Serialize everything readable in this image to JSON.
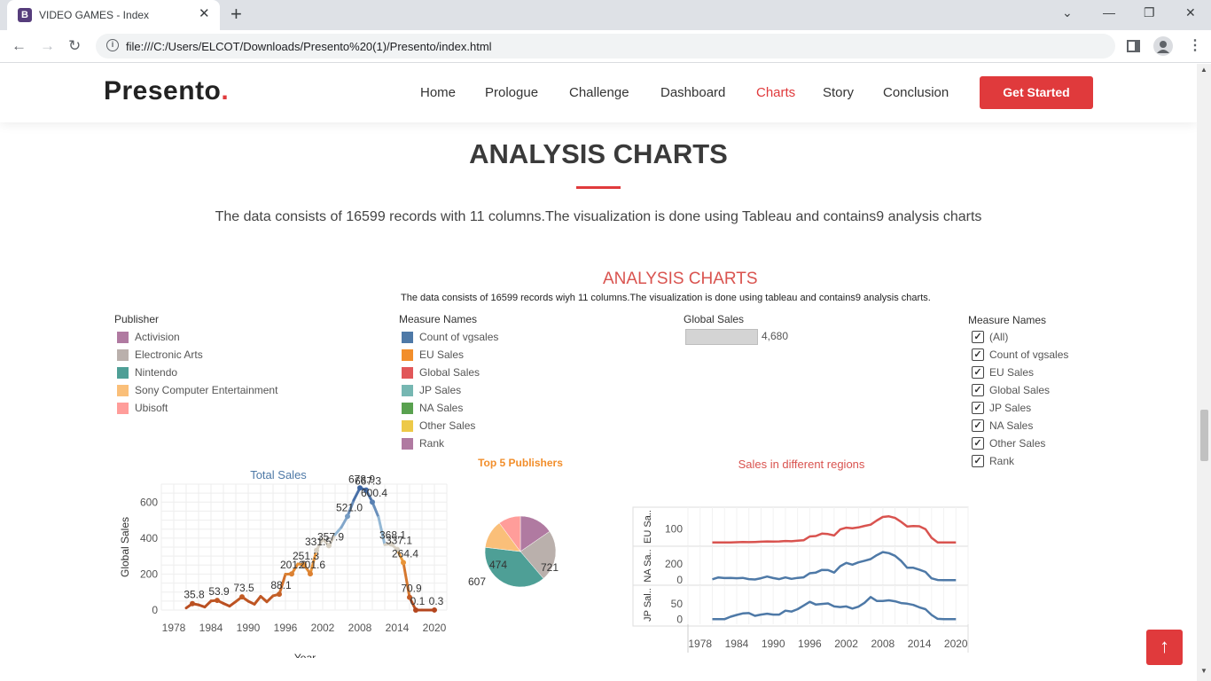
{
  "browser": {
    "tab_title": "VIDEO GAMES - Index",
    "tab_favicon": "B",
    "url": "file:///C:/Users/ELCOT/Downloads/Presento%20(1)/Presento/index.html"
  },
  "site": {
    "logo": "Presento",
    "logo_dot": ".",
    "nav": [
      "Home",
      "Prologue",
      "Challenge",
      "Dashboard",
      "Charts",
      "Story",
      "Conclusion"
    ],
    "active_nav": "Charts",
    "cta": "Get Started"
  },
  "section": {
    "title": "ANALYSIS CHARTS",
    "description": "The data consists of 16599 records with 11 columns.The visualization is done using Tableau and contains9 analysis charts"
  },
  "dashboard": {
    "title": "ANALYSIS CHARTS",
    "subtitle": "The data consists of 16599 records wiyh 11 columns.The visualization is done using tableau and contains9 analysis charts.",
    "publisher_legend": {
      "title": "Publisher",
      "items": [
        {
          "label": "Activision",
          "color": "#b07aa1"
        },
        {
          "label": "Electronic Arts",
          "color": "#bab0ac"
        },
        {
          "label": "Nintendo",
          "color": "#4e9f96"
        },
        {
          "label": "Sony Computer Entertainment",
          "color": "#fabf79"
        },
        {
          "label": "Ubisoft",
          "color": "#ff9d9a"
        }
      ]
    },
    "measure_legend": {
      "title": "Measure Names",
      "items": [
        {
          "label": "Count of vgsales",
          "color": "#4e79a7"
        },
        {
          "label": "EU Sales",
          "color": "#f28e2b"
        },
        {
          "label": "Global Sales",
          "color": "#e15759"
        },
        {
          "label": "JP Sales",
          "color": "#76b7b2"
        },
        {
          "label": "NA Sales",
          "color": "#59a14f"
        },
        {
          "label": "Other Sales",
          "color": "#edc948"
        },
        {
          "label": "Rank",
          "color": "#b07aa1"
        }
      ]
    },
    "global_sales_filter": {
      "title": "Global Sales",
      "value": "4,680"
    },
    "measure_filter": {
      "title": "Measure Names",
      "items": [
        "(All)",
        "Count of vgsales",
        "EU Sales",
        "Global Sales",
        "JP Sales",
        "NA Sales",
        "Other Sales",
        "Rank"
      ]
    }
  },
  "chart_data": [
    {
      "type": "line",
      "title": "Total Sales",
      "xlabel": "Year",
      "ylabel": "Global Sales",
      "x_ticks": [
        "1978",
        "1984",
        "1990",
        "1996",
        "2002",
        "2008",
        "2014",
        "2020"
      ],
      "y_ticks": [
        "0",
        "200",
        "400",
        "600"
      ],
      "x": [
        1980,
        1981,
        1982,
        1983,
        1984,
        1985,
        1986,
        1987,
        1988,
        1989,
        1990,
        1991,
        1992,
        1993,
        1994,
        1995,
        1996,
        1997,
        1998,
        1999,
        2000,
        2001,
        2002,
        2003,
        2004,
        2005,
        2006,
        2007,
        2008,
        2009,
        2010,
        2011,
        2012,
        2013,
        2014,
        2015,
        2016,
        2017,
        2018,
        2019,
        2020
      ],
      "values": [
        11.4,
        35.8,
        28.9,
        16.8,
        50.4,
        53.9,
        37.1,
        21.7,
        47.2,
        73.5,
        49.4,
        32.2,
        76.2,
        45.9,
        79.2,
        88.1,
        199.2,
        201.0,
        256.5,
        251.3,
        201.6,
        331.5,
        395.5,
        357.9,
        419.3,
        459.9,
        521.0,
        611.1,
        678.9,
        667.3,
        600.4,
        515.9,
        363.5,
        368.1,
        337.1,
        264.4,
        70.9,
        0.1,
        0.1,
        0.1,
        0.3
      ],
      "point_labels": [
        {
          "year": 1981,
          "label": "35.8"
        },
        {
          "year": 1985,
          "label": "53.9"
        },
        {
          "year": 1989,
          "label": "73.5"
        },
        {
          "year": 1995,
          "label": "88.1"
        },
        {
          "year": 1997,
          "label": "201.0"
        },
        {
          "year": 1999,
          "label": "251.3"
        },
        {
          "year": 2000,
          "label": "201.6"
        },
        {
          "year": 2001,
          "label": "331.5"
        },
        {
          "year": 2003,
          "label": "357.9"
        },
        {
          "year": 2006,
          "label": "521.0"
        },
        {
          "year": 2008,
          "label": "678.9"
        },
        {
          "year": 2009,
          "label": "667.3"
        },
        {
          "year": 2010,
          "label": "600.4"
        },
        {
          "year": 2013,
          "label": "368.1"
        },
        {
          "year": 2014,
          "label": "337.1"
        },
        {
          "year": 2015,
          "label": "264.4"
        },
        {
          "year": 2016,
          "label": "70.9"
        },
        {
          "year": 2017,
          "label": "0.1"
        },
        {
          "year": 2020,
          "label": "0.3"
        }
      ],
      "ylim": [
        0,
        700
      ],
      "xlim": [
        1976,
        2022
      ],
      "grid": true
    },
    {
      "type": "pie",
      "title": "Top 5 Publishers",
      "slices": [
        {
          "label": "721",
          "value": 721,
          "color": "#b07aa1"
        },
        {
          "label": "1,093",
          "value": 1093,
          "color": "#bab0ac"
        },
        {
          "label": "1,784",
          "value": 1784,
          "color": "#4e9f96"
        },
        {
          "label": "607",
          "value": 607,
          "color": "#fabf79"
        },
        {
          "label": "474",
          "value": 474,
          "color": "#ff9d9a"
        }
      ]
    },
    {
      "type": "line",
      "title": "Sales in different regions",
      "xlabel": "Year",
      "x_ticks": [
        "1978",
        "1984",
        "1990",
        "1996",
        "2002",
        "2008",
        "2014",
        "2020"
      ],
      "xlim": [
        1976,
        2022
      ],
      "x": [
        1980,
        1981,
        1982,
        1983,
        1984,
        1985,
        1986,
        1987,
        1988,
        1989,
        1990,
        1991,
        1992,
        1993,
        1994,
        1995,
        1996,
        1997,
        1998,
        1999,
        2000,
        2001,
        2002,
        2003,
        2004,
        2005,
        2006,
        2007,
        2008,
        2009,
        2010,
        2011,
        2012,
        2013,
        2014,
        2015,
        2016,
        2017,
        2018,
        2019,
        2020
      ],
      "series": [
        {
          "name": "EU Sa..",
          "color": "#d9534f",
          "y_ticks": [
            "100"
          ],
          "ylim": [
            0,
            230
          ],
          "values": [
            1,
            2,
            2,
            1,
            3,
            5,
            4,
            5,
            7,
            9,
            8,
            9,
            12,
            10,
            14,
            17,
            45,
            48,
            65,
            62,
            52,
            95,
            108,
            104,
            110,
            121,
            130,
            160,
            185,
            190,
            178,
            150,
            116,
            120,
            118,
            98,
            35,
            2,
            1,
            1,
            1
          ]
        },
        {
          "name": "NA Sa..",
          "color": "#4e79a7",
          "y_ticks": [
            "200",
            "0"
          ],
          "ylim": [
            -20,
            380
          ],
          "values": [
            10,
            33,
            26,
            28,
            23,
            28,
            12,
            8,
            23,
            45,
            25,
            12,
            33,
            15,
            28,
            35,
            86,
            94,
            128,
            126,
            94,
            173,
            216,
            193,
            222,
            242,
            263,
            312,
            351,
            338,
            304,
            241,
            154,
            154,
            131,
            102,
            22,
            1,
            0,
            0,
            0
          ]
        },
        {
          "name": "JP Sal..",
          "color": "#4e79a7",
          "y_ticks": [
            "50",
            "0"
          ],
          "ylim": [
            -5,
            100
          ],
          "values": [
            0,
            0,
            0,
            8,
            14,
            19,
            20,
            11,
            15,
            18,
            15,
            15,
            28,
            25,
            33,
            45,
            57,
            48,
            50,
            52,
            42,
            40,
            42,
            35,
            41,
            54,
            73,
            60,
            60,
            62,
            59,
            53,
            51,
            47,
            39,
            33,
            14,
            1,
            0,
            0,
            0
          ]
        }
      ]
    }
  ]
}
